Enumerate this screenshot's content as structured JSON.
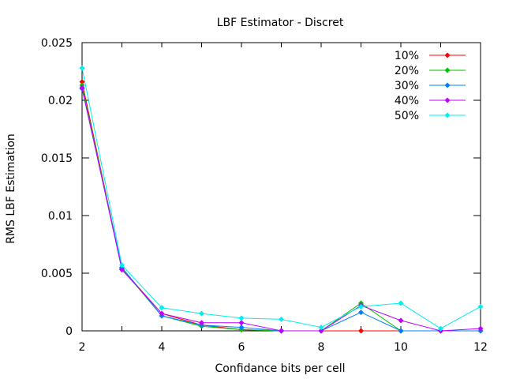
{
  "chart_data": {
    "type": "line",
    "title": "LBF Estimator - Discret",
    "xlabel": "Confidance bits per cell",
    "ylabel": "RMS LBF Estimation",
    "xlim": [
      2,
      12
    ],
    "ylim": [
      0,
      0.025
    ],
    "xticks": [
      2,
      4,
      6,
      8,
      10,
      12
    ],
    "yticks": [
      0,
      0.005,
      0.01,
      0.015,
      0.02,
      0.025
    ],
    "ytick_labels": [
      "0",
      "0.005",
      "0.01",
      "0.015",
      "0.02",
      "0.025"
    ],
    "grid": false,
    "legend_position": "top-right",
    "x": [
      2,
      3,
      4,
      5,
      6,
      7,
      8,
      9,
      10,
      11,
      12
    ],
    "series": [
      {
        "name": "10%",
        "color": "#ff0000",
        "values": [
          0.0216,
          0.0054,
          0.0015,
          0.0005,
          0.0001,
          0.0,
          0.0,
          0.0,
          0.0,
          0.0,
          0.0
        ]
      },
      {
        "name": "20%",
        "color": "#00c000",
        "values": [
          0.0213,
          0.0054,
          0.0013,
          0.0004,
          0.0001,
          0.0,
          0.0,
          0.0024,
          0.0,
          0.0,
          0.0
        ]
      },
      {
        "name": "30%",
        "color": "#0080ff",
        "values": [
          0.021,
          0.0055,
          0.0013,
          0.0005,
          0.0003,
          0.0,
          0.0,
          0.0016,
          0.0,
          0.0,
          0.0
        ]
      },
      {
        "name": "40%",
        "color": "#c000ff",
        "values": [
          0.0211,
          0.0053,
          0.0015,
          0.0007,
          0.0007,
          0.0,
          0.0,
          0.0022,
          0.0009,
          0.0,
          0.0002
        ]
      },
      {
        "name": "50%",
        "color": "#00eeee",
        "values": [
          0.0228,
          0.0057,
          0.002,
          0.0015,
          0.0011,
          0.001,
          0.0003,
          0.0021,
          0.0024,
          0.0002,
          0.0021
        ]
      }
    ]
  }
}
